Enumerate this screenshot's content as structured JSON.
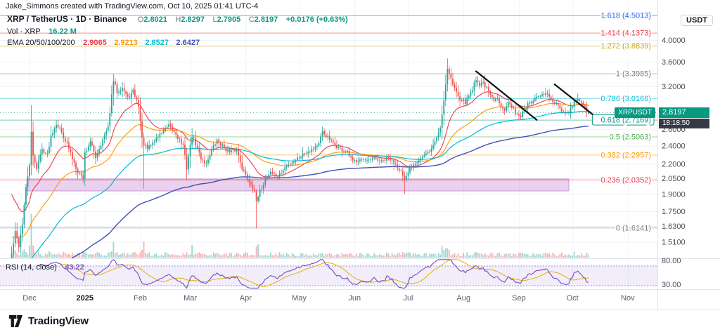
{
  "header": {
    "attribution": "Jake_Simmons created with TradingView.com, Oct 10, 2025 01:41 UTC-4",
    "symbol_title": "XRP / TetherUS · 1D · Binance",
    "ohlc": {
      "o_label": "O",
      "open": "2.8021",
      "h_label": "H",
      "high": "2.8297",
      "l_label": "L",
      "low": "2.7905",
      "c_label": "C",
      "close": "2.8197",
      "change": "+0.0176 (+0.63%)"
    },
    "volume_label": "Vol · XRP",
    "volume_value": "16.22 M",
    "ema_label": "EMA 20/50/100/200",
    "ema_values": [
      "2.9065",
      "2.9213",
      "2.8527",
      "2.6427"
    ]
  },
  "price_axis": {
    "unit": "USDT",
    "ticks": [
      {
        "value": 4.0,
        "label": "4.0000"
      },
      {
        "value": 3.6,
        "label": "3.6000"
      },
      {
        "value": 3.2,
        "label": "3.2000"
      },
      {
        "value": 2.6,
        "label": "2.6000"
      },
      {
        "value": 2.4,
        "label": "2.4000"
      },
      {
        "value": 2.2,
        "label": "2.2000"
      },
      {
        "value": 2.05,
        "label": "2.0500"
      },
      {
        "value": 1.9,
        "label": "1.9000"
      },
      {
        "value": 1.75,
        "label": "1.7500"
      },
      {
        "value": 1.63,
        "label": "1.6300"
      },
      {
        "value": 1.51,
        "label": "1.5100"
      }
    ],
    "tag": {
      "symbol": "XRPUSDT",
      "price": "2.8197",
      "countdown": "18:18:50"
    },
    "rsi_ticks": [
      {
        "value": 80,
        "label": "80.00"
      },
      {
        "value": 30,
        "label": "30.00"
      }
    ]
  },
  "time_axis": [
    {
      "label": "Dec",
      "t": 0,
      "strong": false
    },
    {
      "label": "2025",
      "t": 31,
      "strong": true
    },
    {
      "label": "Feb",
      "t": 62,
      "strong": false
    },
    {
      "label": "Mar",
      "t": 90,
      "strong": false
    },
    {
      "label": "Apr",
      "t": 121,
      "strong": false
    },
    {
      "label": "May",
      "t": 151,
      "strong": false
    },
    {
      "label": "Jun",
      "t": 182,
      "strong": false
    },
    {
      "label": "Jul",
      "t": 212,
      "strong": false
    },
    {
      "label": "Aug",
      "t": 243,
      "strong": false
    },
    {
      "label": "Sep",
      "t": 274,
      "strong": false
    },
    {
      "label": "Oct",
      "t": 304,
      "strong": false
    },
    {
      "label": "Nov",
      "t": 335,
      "strong": false
    }
  ],
  "rsi": {
    "label": "RSI (14, close)",
    "value": "43.22"
  },
  "footer": {
    "brand": "TradingView"
  },
  "colors": {
    "up": "#089981",
    "down": "#f23645",
    "tag_bg": "#089981",
    "countdown_bg": "#363a45",
    "axis_text": "#4a4e59"
  },
  "chart_data": {
    "type": "candlestick",
    "symbol": "XRPUSDT",
    "exchange": "Binance",
    "interval": "1D",
    "scale": "log",
    "grid_color": "#f0f3fa",
    "candle_up": "#26a69a",
    "candle_down": "#ef5350",
    "trend_color": "#111111",
    "last_candle": {
      "o": 2.8021,
      "h": 2.8297,
      "l": 2.7905,
      "c": 2.8197
    },
    "price_anchors": [
      [
        -10,
        1.42
      ],
      [
        -8,
        1.58
      ],
      [
        -6,
        1.48
      ],
      [
        -4,
        1.65
      ],
      [
        -2,
        1.95
      ],
      [
        0,
        2.2
      ],
      [
        1,
        2.55
      ],
      [
        2,
        2.28
      ],
      [
        4,
        2.16
      ],
      [
        7,
        2.36
      ],
      [
        10,
        2.3
      ],
      [
        12,
        2.52
      ],
      [
        15,
        2.68
      ],
      [
        18,
        2.56
      ],
      [
        21,
        2.42
      ],
      [
        24,
        2.26
      ],
      [
        27,
        2.12
      ],
      [
        30,
        2.06
      ],
      [
        31,
        2.32
      ],
      [
        34,
        2.44
      ],
      [
        37,
        2.28
      ],
      [
        40,
        2.42
      ],
      [
        44,
        2.62
      ],
      [
        46,
        3.05
      ],
      [
        47,
        3.28
      ],
      [
        49,
        3.12
      ],
      [
        52,
        3.18
      ],
      [
        55,
        3.02
      ],
      [
        58,
        3.12
      ],
      [
        61,
        2.92
      ],
      [
        63,
        2.48
      ],
      [
        64,
        2.42
      ],
      [
        66,
        2.36
      ],
      [
        70,
        2.46
      ],
      [
        74,
        2.56
      ],
      [
        78,
        2.64
      ],
      [
        82,
        2.54
      ],
      [
        86,
        2.4
      ],
      [
        88,
        2.16
      ],
      [
        91,
        2.52
      ],
      [
        93,
        2.42
      ],
      [
        96,
        2.26
      ],
      [
        99,
        2.2
      ],
      [
        102,
        2.36
      ],
      [
        105,
        2.46
      ],
      [
        108,
        2.4
      ],
      [
        112,
        2.32
      ],
      [
        116,
        2.36
      ],
      [
        119,
        2.16
      ],
      [
        121,
        2.08
      ],
      [
        123,
        2.02
      ],
      [
        126,
        1.94
      ],
      [
        127,
        1.82
      ],
      [
        129,
        1.92
      ],
      [
        132,
        2.04
      ],
      [
        135,
        2.12
      ],
      [
        139,
        2.06
      ],
      [
        143,
        2.16
      ],
      [
        147,
        2.22
      ],
      [
        150,
        2.26
      ],
      [
        154,
        2.32
      ],
      [
        158,
        2.36
      ],
      [
        162,
        2.42
      ],
      [
        164,
        2.56
      ],
      [
        167,
        2.5
      ],
      [
        170,
        2.42
      ],
      [
        174,
        2.36
      ],
      [
        178,
        2.32
      ],
      [
        181,
        2.22
      ],
      [
        185,
        2.26
      ],
      [
        189,
        2.22
      ],
      [
        193,
        2.26
      ],
      [
        197,
        2.22
      ],
      [
        201,
        2.26
      ],
      [
        205,
        2.2
      ],
      [
        208,
        2.12
      ],
      [
        210,
        2.02
      ],
      [
        211,
        2.06
      ],
      [
        213,
        2.16
      ],
      [
        216,
        2.22
      ],
      [
        219,
        2.26
      ],
      [
        222,
        2.3
      ],
      [
        225,
        2.36
      ],
      [
        228,
        2.5
      ],
      [
        230,
        2.62
      ],
      [
        231,
        2.8
      ],
      [
        232,
        3.0
      ],
      [
        233,
        3.25
      ],
      [
        234,
        3.48
      ],
      [
        235,
        3.42
      ],
      [
        237,
        3.22
      ],
      [
        239,
        3.12
      ],
      [
        241,
        3.02
      ],
      [
        244,
        2.96
      ],
      [
        246,
        3.06
      ],
      [
        248,
        3.16
      ],
      [
        250,
        3.32
      ],
      [
        252,
        3.22
      ],
      [
        254,
        3.26
      ],
      [
        256,
        3.16
      ],
      [
        258,
        3.06
      ],
      [
        260,
        2.98
      ],
      [
        262,
        3.02
      ],
      [
        264,
        2.92
      ],
      [
        266,
        2.87
      ],
      [
        268,
        2.96
      ],
      [
        270,
        2.88
      ],
      [
        272,
        2.82
      ],
      [
        275,
        2.77
      ],
      [
        277,
        2.86
      ],
      [
        279,
        2.92
      ],
      [
        281,
        2.96
      ],
      [
        283,
        3.0
      ],
      [
        285,
        3.04
      ],
      [
        287,
        3.06
      ],
      [
        289,
        3.1
      ],
      [
        291,
        3.04
      ],
      [
        293,
        2.96
      ],
      [
        295,
        2.92
      ],
      [
        297,
        2.86
      ],
      [
        299,
        2.82
      ],
      [
        301,
        2.79
      ],
      [
        303,
        2.86
      ],
      [
        305,
        2.96
      ],
      [
        307,
        3.02
      ],
      [
        309,
        2.94
      ],
      [
        311,
        2.88
      ],
      [
        312,
        2.81
      ],
      [
        313,
        2.8197
      ]
    ],
    "wick_overrides": [
      {
        "t": 1,
        "high": 2.92
      },
      {
        "t": 47,
        "high": 3.4
      },
      {
        "t": 64,
        "low": 1.95
      },
      {
        "t": 91,
        "high": 2.62
      },
      {
        "t": 127,
        "low": 1.61
      },
      {
        "t": 210,
        "low": 1.9
      },
      {
        "t": 234,
        "high": 3.66
      },
      {
        "t": 289,
        "high": 3.18
      },
      {
        "t": 307,
        "high": 3.09
      }
    ],
    "volume_spikes": {
      "-9": 2.6,
      "-8": 2.2,
      "-7": 2.0,
      "0": 2.6,
      "1": 3.4,
      "2": 3.0,
      "3": 2.0,
      "15": 1.6,
      "46": 2.0,
      "47": 2.2,
      "63": 2.2,
      "64": 2.6,
      "91": 2.0,
      "127": 3.2,
      "128": 2.4,
      "164": 1.5,
      "210": 1.8,
      "231": 1.8,
      "232": 2.2,
      "233": 2.8,
      "234": 3.0,
      "235": 2.2,
      "250": 1.7,
      "289": 1.5,
      "305": 1.4,
      "307": 1.5
    },
    "emas": [
      {
        "period": 20,
        "color": "#f23645",
        "init": 1.95,
        "width": 1.1
      },
      {
        "period": 50,
        "color": "#ff9800",
        "init": 1.55,
        "width": 1.1
      },
      {
        "period": 100,
        "color": "#00bcd4",
        "init": 1.28,
        "width": 1.2
      },
      {
        "period": 200,
        "color": "#3f51b5",
        "init": 1.05,
        "width": 1.4
      }
    ],
    "rsi": {
      "period": 14,
      "color": "#7e57c2",
      "ma_color": "#e2b007",
      "band_fill": "rgba(126,87,194,0.10)",
      "level_color": "#9b7dd4",
      "upper": 70,
      "lower": 30
    },
    "fib_levels": [
      {
        "ratio": "1.618",
        "price": 4.5013,
        "label": "1.618 (4.5013)",
        "color": "#2962ff",
        "boxed": false
      },
      {
        "ratio": "1.414",
        "price": 4.1373,
        "label": "1.414 (4.1373)",
        "color": "#f23645",
        "boxed": false
      },
      {
        "ratio": "1.272",
        "price": 3.8839,
        "label": "1.272 (3.8839)",
        "color": "#c5a30a",
        "boxed": false
      },
      {
        "ratio": "1",
        "price": 3.3985,
        "label": "1 (3.3985)",
        "color": "#787b86",
        "boxed": false
      },
      {
        "ratio": "0.786",
        "price": 3.0166,
        "label": "0.786 (3.0166)",
        "color": "#00bcd4",
        "boxed": false
      },
      {
        "ratio": "0.618",
        "price": 2.7169,
        "label": "0.618 (2.7169)",
        "color": "#089981",
        "boxed": true
      },
      {
        "ratio": "0.5",
        "price": 2.5063,
        "label": "0.5 (2.5063)",
        "color": "#4caf50",
        "boxed": false
      },
      {
        "ratio": "0.382",
        "price": 2.2957,
        "label": "0.382 (2.2957)",
        "color": "#ff9800",
        "boxed": false
      },
      {
        "ratio": "0.236",
        "price": 2.0352,
        "label": "0.236 (2.0352)",
        "color": "#f23645",
        "boxed": false
      },
      {
        "ratio": "0",
        "price": 1.6141,
        "label": "0 (1.6141)",
        "color": "#787b86",
        "boxed": false
      }
    ],
    "trend_lines": [
      {
        "t1": 250,
        "p1": 3.44,
        "t2": 284,
        "p2": 2.72
      },
      {
        "t1": 294,
        "p1": 3.23,
        "t2": 316,
        "p2": 2.78
      }
    ],
    "support_box": {
      "t1": -1.5,
      "t2": 302,
      "p_top": 2.045,
      "p_bottom": 1.93,
      "fill": "rgba(186,104,200,0.30)",
      "stroke": "rgba(140,60,180,0.45)"
    }
  }
}
